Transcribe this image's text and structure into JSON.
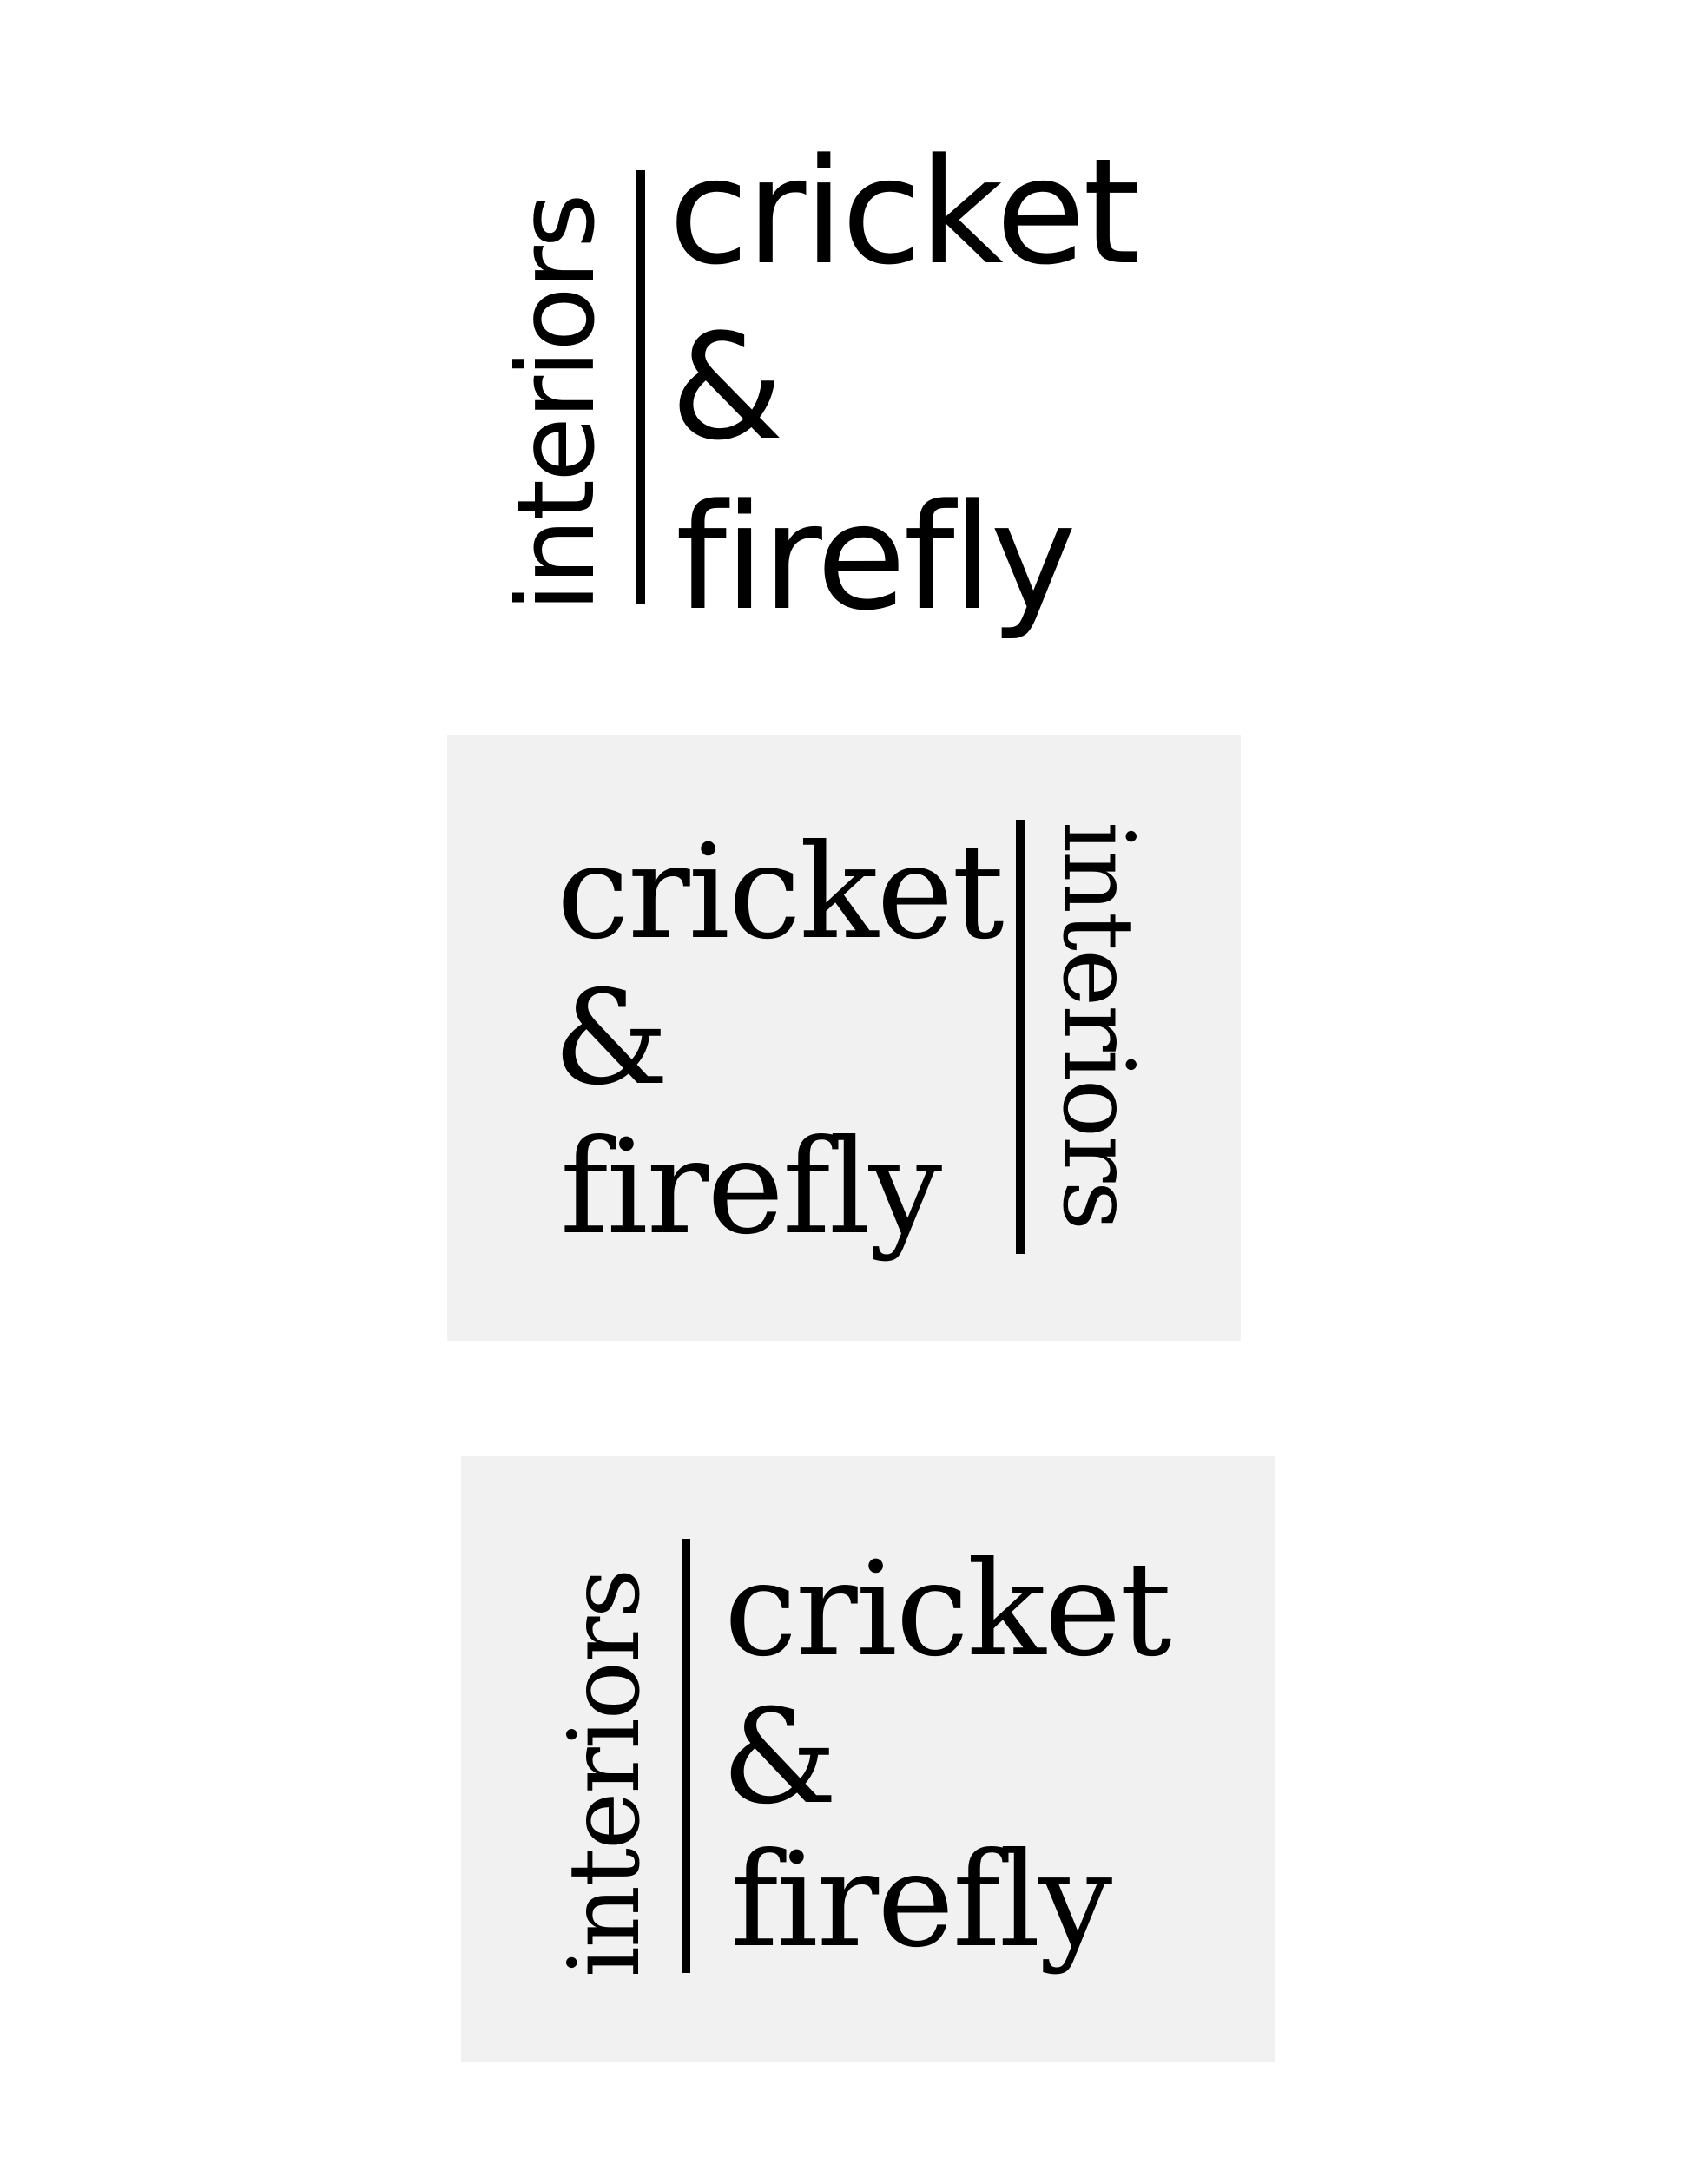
{
  "logos": [
    {
      "variant": "sans-on-white",
      "background": "#ffffff",
      "word_a": "cricket",
      "word_b": "&",
      "word_c": "firefly",
      "side_word": "interiors"
    },
    {
      "variant": "serif-on-grey-side-right",
      "background": "#f1f1f1",
      "word_a": "cricket",
      "word_b": "&",
      "word_c": "firefly",
      "side_word": "interiors"
    },
    {
      "variant": "serif-on-grey-side-left",
      "background": "#f1f1f1",
      "word_a": "cricket",
      "word_b": "&",
      "word_c": "firefly",
      "side_word": "interiors"
    }
  ]
}
